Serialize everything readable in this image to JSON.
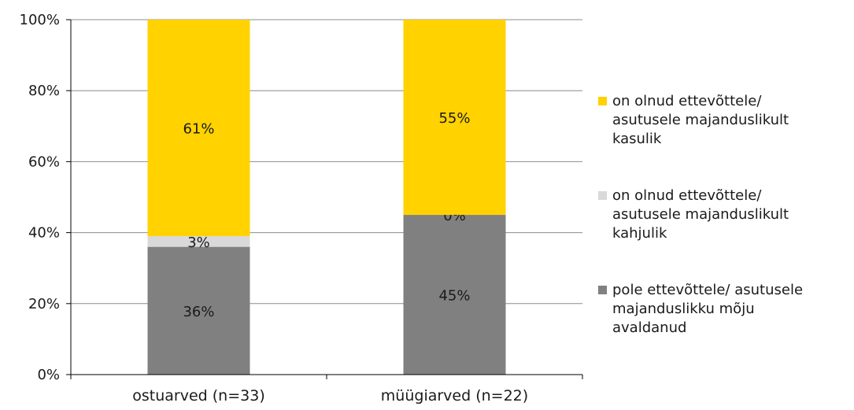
{
  "chart_data": {
    "type": "bar",
    "stacked": true,
    "percent_stacked": true,
    "categories": [
      "ostuarved (n=33)",
      "müügiarved (n=22)"
    ],
    "y_ticks": [
      "0%",
      "20%",
      "40%",
      "60%",
      "80%",
      "100%"
    ],
    "ylim": [
      0,
      100
    ],
    "grid": true,
    "legend_position": "right",
    "series": [
      {
        "name": "pole ettevõttele/ asutusele majanduslikku mõju avaldanud",
        "legend_lines": [
          "pole ettevõttele/ asutusele",
          "majanduslikku mõju",
          "avaldanud"
        ],
        "values": [
          36,
          45
        ],
        "labels": [
          "36%",
          "45%"
        ],
        "color": "#808080"
      },
      {
        "name": "on olnud ettevõttele/ asutusele majanduslikult kahjulik",
        "legend_lines": [
          "on olnud ettevõttele/",
          "asutusele majanduslikult",
          "kahjulik"
        ],
        "values": [
          3,
          0
        ],
        "labels": [
          "3%",
          "0%"
        ],
        "color": "#d9d9d9"
      },
      {
        "name": "on olnud ettevõttele/ asutusele majanduslikult kasulik",
        "legend_lines": [
          "on olnud ettevõttele/",
          "asutusele majanduslikult",
          "kasulik"
        ],
        "values": [
          61,
          55
        ],
        "labels": [
          "61%",
          "55%"
        ],
        "color": "#ffd200"
      }
    ],
    "legend_order": [
      2,
      1,
      0
    ]
  }
}
